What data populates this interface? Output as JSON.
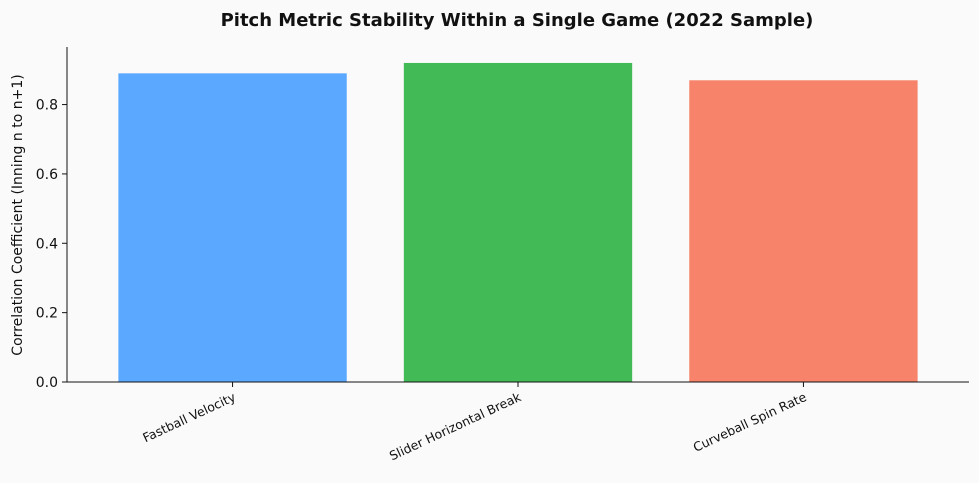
{
  "chart_data": {
    "type": "bar",
    "title": "Pitch Metric Stability Within a Single Game (2022 Sample)",
    "xlabel": "",
    "ylabel": "Correlation Coefficient (Inning n to n+1)",
    "categories": [
      "Fastball Velocity",
      "Slider Horizontal Break",
      "Curveball Spin Rate"
    ],
    "values": [
      0.89,
      0.92,
      0.87
    ],
    "colors": [
      "#5aa8ff",
      "#42ba55",
      "#f7836a"
    ],
    "ylim": [
      0,
      0.966
    ],
    "yticks": [
      0.0,
      0.2,
      0.4,
      0.6,
      0.8
    ],
    "ytick_labels": [
      "0.0",
      "0.2",
      "0.4",
      "0.6",
      "0.8"
    ],
    "grid": false,
    "legend": "none"
  }
}
